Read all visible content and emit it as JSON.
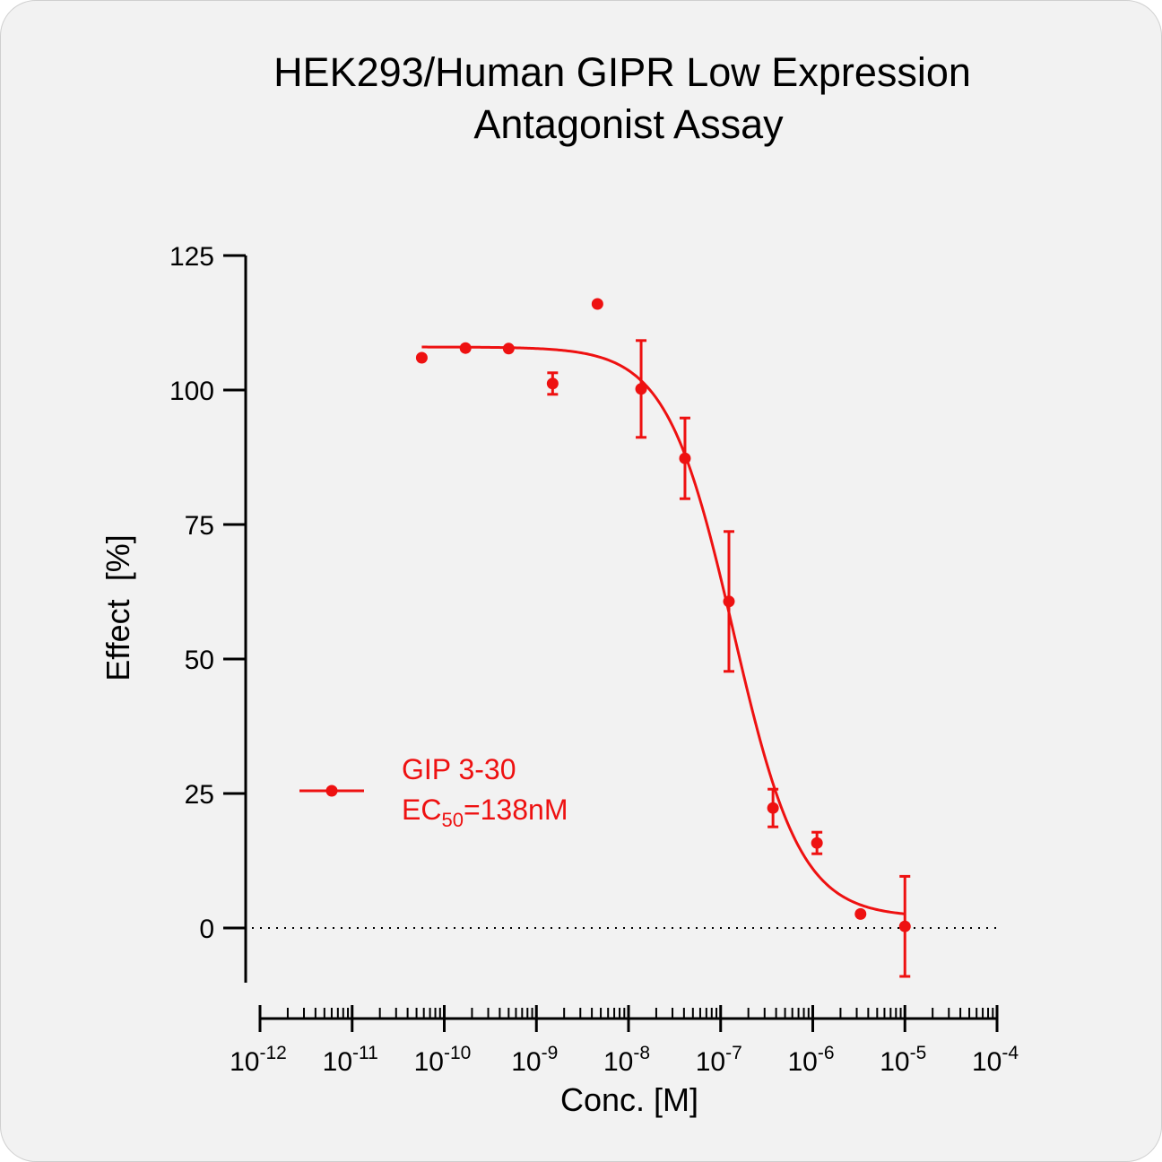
{
  "chart_data": {
    "type": "scatter",
    "title_lines": [
      "HEK293/Human GIPR Low Expression",
      "Antagonist Assay"
    ],
    "xlabel": "Conc. [M]",
    "ylabel": "Effect  [%]",
    "x_scale": "log",
    "xlim": [
      1e-12,
      0.0001
    ],
    "ylim": [
      -10,
      125
    ],
    "y_ticks": [
      "0",
      "25",
      "50",
      "75",
      "100",
      "125"
    ],
    "y_tick_values": [
      0,
      25,
      50,
      75,
      100,
      125
    ],
    "x_tick_values": [
      1e-12,
      1e-11,
      1e-10,
      1e-09,
      1e-08,
      1e-07,
      1e-06,
      1e-05,
      0.0001
    ],
    "x_tick_base": [
      "10",
      "10",
      "10",
      "10",
      "10",
      "10",
      "10",
      "10",
      "10"
    ],
    "x_tick_exp": [
      "-12",
      "-11",
      "-10",
      "-9",
      "-8",
      "-7",
      "-6",
      "-5",
      "-4"
    ],
    "reference_line_y": 0,
    "color": "#ee1111",
    "series": [
      {
        "name": "GIP 3-30",
        "legend_line2_prefix": "EC",
        "legend_line2_sub": "50",
        "legend_line2_suffix": "=138nM",
        "points": [
          {
            "x": 5.7e-11,
            "y": 106,
            "err": 0
          },
          {
            "x": 1.7e-10,
            "y": 107.8,
            "err": 0
          },
          {
            "x": 5e-10,
            "y": 107.7,
            "err": 0
          },
          {
            "x": 1.5e-09,
            "y": 101.2,
            "err": 2
          },
          {
            "x": 4.6e-09,
            "y": 116,
            "err": 0
          },
          {
            "x": 1.37e-08,
            "y": 100.2,
            "err": 9
          },
          {
            "x": 4.1e-08,
            "y": 87.3,
            "err": 7.5
          },
          {
            "x": 1.23e-07,
            "y": 60.7,
            "err": 13
          },
          {
            "x": 3.7e-07,
            "y": 22.3,
            "err": 3.5
          },
          {
            "x": 1.11e-06,
            "y": 15.8,
            "err": 2
          },
          {
            "x": 3.3e-06,
            "y": 2.6,
            "err": 0
          },
          {
            "x": 1e-05,
            "y": 0.3,
            "err": 9.3
          }
        ],
        "fit": {
          "top": 108,
          "bottom": 2,
          "ec50": 1.38e-07,
          "hill": 1.2
        }
      }
    ]
  }
}
